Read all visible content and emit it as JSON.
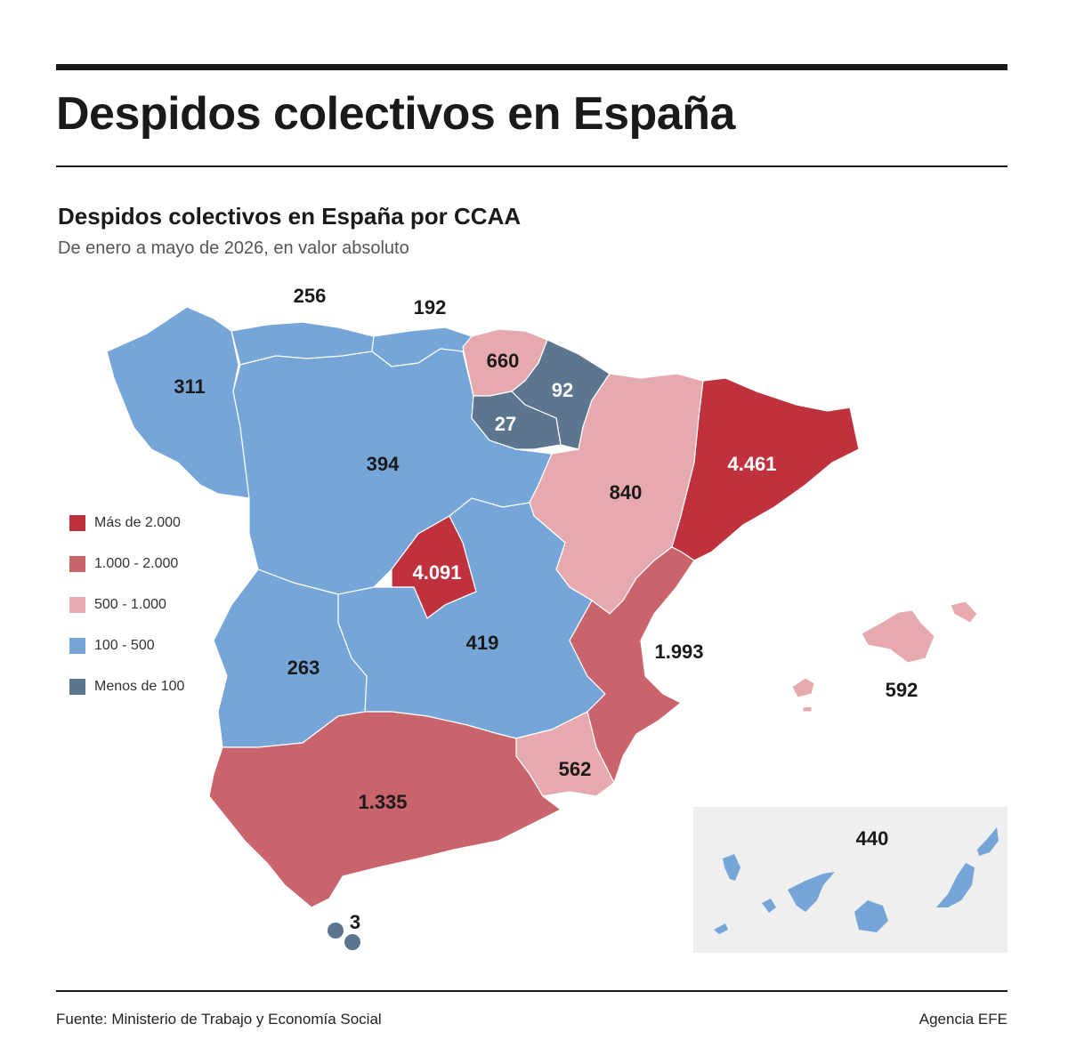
{
  "header": {
    "title": "Despidos colectivos en España",
    "subtitle": "Despidos colectivos en España por CCAA",
    "description": "De enero a mayo de 2026, en valor absoluto"
  },
  "colors": {
    "mas_2000": "#c0313e",
    "r1000_2000": "#c9636c",
    "r500_1000": "#e6a9ae",
    "r100_500": "#76a6d8",
    "menos_100": "#5d7690"
  },
  "legend": [
    {
      "label": "Más de 2.000",
      "color": "#c0313e"
    },
    {
      "label": "1.000 - 2.000",
      "color": "#c9636c"
    },
    {
      "label": "500 - 1.000",
      "color": "#e6a9ae"
    },
    {
      "label": "100 - 500",
      "color": "#76a6d8"
    },
    {
      "label": "Menos de 100",
      "color": "#5d7690"
    }
  ],
  "regions": {
    "galicia": "311",
    "asturias": "256",
    "cantabria": "192",
    "pais_vasco": "660",
    "navarra": "92",
    "la_rioja": "27",
    "aragon": "840",
    "cataluna": "4.461",
    "castilla_leon": "394",
    "madrid": "4.091",
    "castilla_la_mancha": "419",
    "extremadura": "263",
    "comunidad_valenciana": "1.993",
    "murcia": "562",
    "andalucia": "1.335",
    "baleares": "592",
    "canarias": "440",
    "ceuta_melilla": "3"
  },
  "footer": {
    "source": "Fuente: Ministerio de Trabajo y Economía Social",
    "credit": "Agencia EFE"
  }
}
